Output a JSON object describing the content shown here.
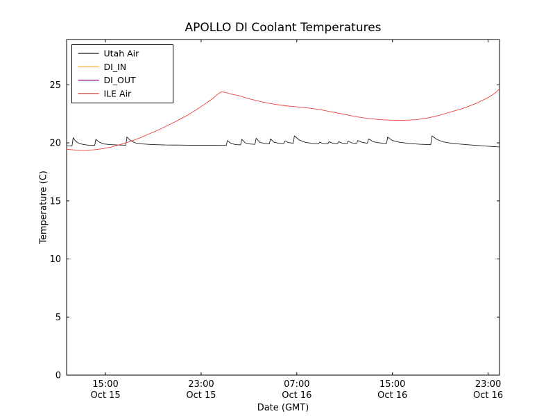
{
  "chart_data": {
    "type": "line",
    "title": "APOLLO DI Coolant Temperatures",
    "xlabel": "Date (GMT)",
    "ylabel": "Temperature (C)",
    "x_unit": "hours since Oct 15 00:00 GMT",
    "xlim": [
      11.75,
      47.95
    ],
    "ylim": [
      0,
      28.9
    ],
    "grid": false,
    "legend_position": "upper left",
    "y_ticks": [
      0,
      5,
      10,
      15,
      20,
      25
    ],
    "x_ticks": [
      {
        "value": 15,
        "line1": "15:00",
        "line2": "Oct 15"
      },
      {
        "value": 23,
        "line1": "23:00",
        "line2": "Oct 15"
      },
      {
        "value": 31,
        "line1": "07:00",
        "line2": "Oct 16"
      },
      {
        "value": 39,
        "line1": "15:00",
        "line2": "Oct 16"
      },
      {
        "value": 47,
        "line1": "23:00",
        "line2": "Oct 16"
      }
    ],
    "series": [
      {
        "id": "utah-air",
        "name": "Utah Air",
        "color": "#1a1a1a",
        "width": 0.9,
        "points": [
          [
            11.75,
            19.75
          ],
          [
            12.2,
            19.72
          ],
          [
            12.3,
            20.45
          ],
          [
            12.5,
            20.15
          ],
          [
            12.8,
            19.95
          ],
          [
            13.2,
            19.85
          ],
          [
            13.6,
            19.8
          ],
          [
            14.1,
            19.78
          ],
          [
            14.2,
            20.3
          ],
          [
            14.5,
            20.05
          ],
          [
            14.9,
            19.9
          ],
          [
            15.4,
            19.85
          ],
          [
            16.0,
            19.82
          ],
          [
            16.7,
            19.8
          ],
          [
            16.8,
            20.5
          ],
          [
            17.1,
            20.2
          ],
          [
            17.5,
            20.0
          ],
          [
            18.0,
            19.92
          ],
          [
            18.8,
            19.86
          ],
          [
            20.0,
            19.82
          ],
          [
            22.0,
            19.8
          ],
          [
            24.0,
            19.79
          ],
          [
            25.1,
            19.78
          ],
          [
            25.2,
            20.2
          ],
          [
            25.5,
            19.95
          ],
          [
            25.9,
            19.85
          ],
          [
            26.3,
            19.83
          ],
          [
            26.4,
            20.3
          ],
          [
            26.7,
            20.0
          ],
          [
            27.1,
            19.9
          ],
          [
            27.5,
            19.87
          ],
          [
            27.6,
            20.4
          ],
          [
            27.9,
            20.05
          ],
          [
            28.3,
            19.95
          ],
          [
            28.7,
            19.9
          ],
          [
            28.8,
            20.35
          ],
          [
            29.1,
            20.05
          ],
          [
            29.5,
            19.97
          ],
          [
            29.9,
            19.93
          ],
          [
            30.0,
            20.15
          ],
          [
            30.3,
            20.02
          ],
          [
            30.7,
            19.97
          ],
          [
            30.8,
            20.6
          ],
          [
            31.2,
            20.25
          ],
          [
            31.7,
            20.05
          ],
          [
            32.3,
            19.95
          ],
          [
            32.8,
            19.9
          ],
          [
            32.9,
            20.05
          ],
          [
            33.2,
            19.95
          ],
          [
            33.6,
            19.9
          ],
          [
            33.7,
            20.1
          ],
          [
            34.0,
            19.97
          ],
          [
            34.4,
            19.92
          ],
          [
            34.5,
            20.1
          ],
          [
            34.8,
            19.98
          ],
          [
            35.2,
            19.93
          ],
          [
            35.3,
            20.15
          ],
          [
            35.6,
            20.0
          ],
          [
            36.0,
            19.95
          ],
          [
            36.1,
            20.2
          ],
          [
            36.5,
            20.03
          ],
          [
            36.9,
            19.97
          ],
          [
            37.0,
            20.35
          ],
          [
            37.4,
            20.1
          ],
          [
            37.9,
            20.0
          ],
          [
            38.5,
            19.95
          ],
          [
            38.6,
            20.5
          ],
          [
            39.0,
            20.2
          ],
          [
            39.6,
            20.05
          ],
          [
            40.4,
            19.95
          ],
          [
            41.3,
            19.88
          ],
          [
            42.2,
            19.84
          ],
          [
            42.3,
            20.6
          ],
          [
            42.7,
            20.3
          ],
          [
            43.2,
            20.1
          ],
          [
            43.9,
            19.97
          ],
          [
            44.8,
            19.88
          ],
          [
            45.8,
            19.8
          ],
          [
            46.8,
            19.72
          ],
          [
            47.95,
            19.65
          ]
        ]
      },
      {
        "id": "di-in",
        "name": "DI_IN",
        "color": "#ffa500",
        "width": 1,
        "points": []
      },
      {
        "id": "di-out",
        "name": "DI_OUT",
        "color": "#800080",
        "width": 1,
        "points": []
      },
      {
        "id": "ile-air",
        "name": "ILE Air",
        "color": "#e84040",
        "width": 0.9,
        "points": [
          [
            11.75,
            19.45
          ],
          [
            12.5,
            19.38
          ],
          [
            13.2,
            19.35
          ],
          [
            14.0,
            19.4
          ],
          [
            14.8,
            19.5
          ],
          [
            15.5,
            19.65
          ],
          [
            16.2,
            19.85
          ],
          [
            17.0,
            20.1
          ],
          [
            17.8,
            20.4
          ],
          [
            18.6,
            20.75
          ],
          [
            19.4,
            21.1
          ],
          [
            20.2,
            21.5
          ],
          [
            21.0,
            21.9
          ],
          [
            21.8,
            22.35
          ],
          [
            22.6,
            22.85
          ],
          [
            23.4,
            23.4
          ],
          [
            24.0,
            23.85
          ],
          [
            24.4,
            24.2
          ],
          [
            24.7,
            24.4
          ],
          [
            25.0,
            24.35
          ],
          [
            25.5,
            24.2
          ],
          [
            26.2,
            24.05
          ],
          [
            27.0,
            23.8
          ],
          [
            28.0,
            23.55
          ],
          [
            29.0,
            23.35
          ],
          [
            30.0,
            23.2
          ],
          [
            31.0,
            23.1
          ],
          [
            32.0,
            23.0
          ],
          [
            33.0,
            22.85
          ],
          [
            34.0,
            22.65
          ],
          [
            35.0,
            22.45
          ],
          [
            36.0,
            22.25
          ],
          [
            37.0,
            22.1
          ],
          [
            38.0,
            22.0
          ],
          [
            39.0,
            21.95
          ],
          [
            40.0,
            21.95
          ],
          [
            41.0,
            22.0
          ],
          [
            42.0,
            22.15
          ],
          [
            43.0,
            22.4
          ],
          [
            44.0,
            22.7
          ],
          [
            45.0,
            23.0
          ],
          [
            46.0,
            23.4
          ],
          [
            47.0,
            23.9
          ],
          [
            47.6,
            24.3
          ],
          [
            47.95,
            24.65
          ]
        ]
      }
    ]
  }
}
